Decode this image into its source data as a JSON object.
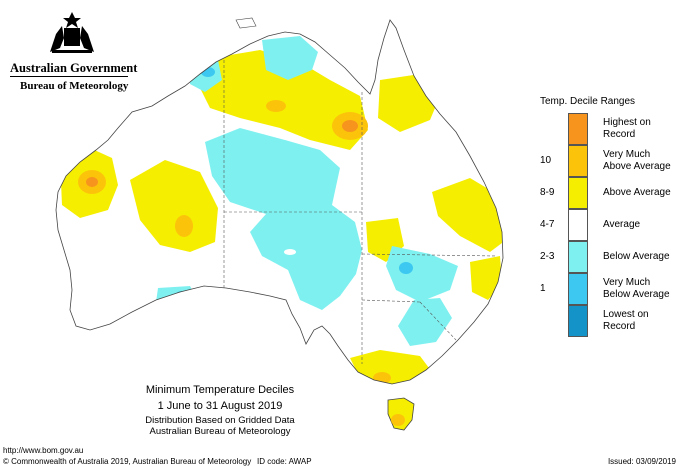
{
  "header": {
    "government": "Australian Government",
    "bureau": "Bureau of Meteorology"
  },
  "legend": {
    "title": "Temp. Decile Ranges",
    "items": [
      {
        "range": "",
        "label1": "Highest on",
        "label2": "Record",
        "color": "#f7941d"
      },
      {
        "range": "10",
        "label1": "Very Much",
        "label2": "Above Average",
        "color": "#fcc30b"
      },
      {
        "range": "8-9",
        "label1": "Above Average",
        "label2": "",
        "color": "#f5ee00"
      },
      {
        "range": "4-7",
        "label1": "Average",
        "label2": "",
        "color": "#ffffff"
      },
      {
        "range": "2-3",
        "label1": "Below Average",
        "label2": "",
        "color": "#7ff0f0"
      },
      {
        "range": "1",
        "label1": "Very Much",
        "label2": "Below Average",
        "color": "#3cc8f0"
      },
      {
        "range": "",
        "label1": "Lowest on",
        "label2": "Record",
        "color": "#1493c8"
      }
    ]
  },
  "caption": {
    "title": "Minimum Temperature Deciles",
    "period": "1 June to 31 August 2019",
    "line3": "Distribution Based on Gridded Data",
    "line4": "Australian Bureau of Meteorology"
  },
  "footer": {
    "url": "http://www.bom.gov.au",
    "copyright": "© Commonwealth of Australia 2019, Australian Bureau of Meteorology",
    "id_code": "ID code: AWAP",
    "issued": "Issued: 03/09/2019"
  }
}
